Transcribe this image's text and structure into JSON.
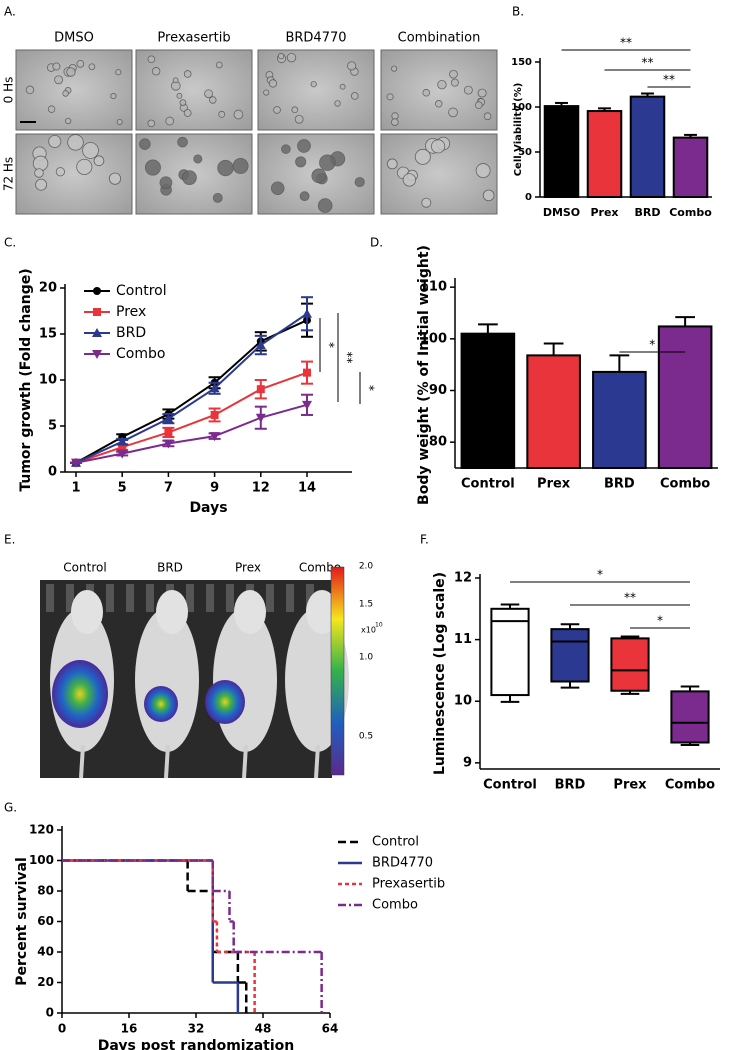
{
  "image_panels": [
    {
      "label": "A.",
      "columns": [
        "DMSO",
        "Prexasertib",
        "BRD4770",
        "Combination"
      ],
      "rows": [
        "0 Hs",
        "72 Hs"
      ]
    },
    {
      "label": "E.",
      "columns": [
        "Control",
        "BRD",
        "Prex",
        "Combo"
      ],
      "colorbar_ticks": [
        "2.0",
        "1.5",
        "1.0",
        "0.5"
      ],
      "colorbar_unit": "x10",
      "colorbar_exponent": "10"
    }
  ],
  "chart_data": [
    {
      "panel_label": "B.",
      "type": "bar",
      "y_label": "Cell Viability (%)",
      "categories": [
        "DMSO",
        "Prex",
        "BRD",
        "Combo"
      ],
      "values": [
        101,
        95.5,
        111.5,
        66
      ],
      "errors": [
        3.5,
        3,
        3.5,
        3
      ],
      "colors": [
        "#000000",
        "#e8343a",
        "#2b3990",
        "#7b2a8e"
      ],
      "ylim": [
        0,
        150
      ],
      "yticks": [
        0,
        50,
        100,
        150
      ],
      "annotations": [
        "**",
        "**",
        "**"
      ]
    },
    {
      "panel_label": "C.",
      "type": "line",
      "x_label": "Days",
      "y_label": "Tumor growth (Fold change)",
      "categories": [
        "1",
        "5",
        "7",
        "9",
        "12",
        "14"
      ],
      "series": [
        {
          "name": "Control",
          "color": "#000000",
          "marker": "circle",
          "values": [
            1,
            3.8,
            6.3,
            9.7,
            14.2,
            16.5
          ],
          "errors": [
            0,
            0.3,
            0.5,
            0.6,
            1,
            1.8
          ]
        },
        {
          "name": "Prex",
          "color": "#e8343a",
          "marker": "square",
          "values": [
            1,
            2.7,
            4.3,
            6.2,
            9,
            10.8
          ],
          "errors": [
            0,
            0.3,
            0.5,
            0.7,
            1,
            1.2
          ]
        },
        {
          "name": "BRD",
          "color": "#2b3990",
          "marker": "triangle",
          "values": [
            1,
            3.3,
            5.8,
            9.1,
            13.8,
            17.2
          ],
          "errors": [
            0,
            0.3,
            0.5,
            0.6,
            1,
            1.8
          ]
        },
        {
          "name": "Combo",
          "color": "#7b2a8e",
          "marker": "triangle-down",
          "values": [
            1,
            2,
            3.1,
            3.9,
            5.9,
            7.3
          ],
          "errors": [
            0,
            0.2,
            0.3,
            0.3,
            1.2,
            1.1
          ]
        }
      ],
      "ylim": [
        0,
        20
      ],
      "yticks": [
        0,
        5,
        10,
        15,
        20
      ],
      "annotations": [
        "*",
        "**",
        "*"
      ]
    },
    {
      "panel_label": "D.",
      "type": "bar",
      "y_label": "Body weight (% of Initial weight)",
      "categories": [
        "Control",
        "Prex",
        "BRD",
        "Combo"
      ],
      "values": [
        101,
        96.8,
        93.6,
        102.4
      ],
      "errors": [
        1.8,
        2.3,
        3.2,
        1.8
      ],
      "colors": [
        "#000000",
        "#e8343a",
        "#2b3990",
        "#7b2a8e"
      ],
      "ylim": [
        75,
        111
      ],
      "yticks": [
        80,
        90,
        100,
        110
      ],
      "annotations": [
        "*"
      ]
    },
    {
      "panel_label": "F.",
      "type": "box",
      "y_label": "Luminescence (Log scale)",
      "categories": [
        "Control",
        "BRD",
        "Prex",
        "Combo"
      ],
      "boxes": [
        {
          "min": 9.99,
          "q1": 10.1,
          "median": 11.3,
          "q3": 11.5,
          "max": 11.57
        },
        {
          "min": 10.22,
          "q1": 10.32,
          "median": 10.97,
          "q3": 11.17,
          "max": 11.25
        },
        {
          "min": 10.12,
          "q1": 10.17,
          "median": 10.5,
          "q3": 11.02,
          "max": 11.05
        },
        {
          "min": 9.29,
          "q1": 9.33,
          "median": 9.65,
          "q3": 10.16,
          "max": 10.24
        }
      ],
      "colors": [
        "#ffffff",
        "#2b3990",
        "#e8343a",
        "#7b2a8e"
      ],
      "ylim": [
        8.9,
        12
      ],
      "yticks": [
        9,
        10,
        11,
        12
      ],
      "annotations": [
        "*",
        "**",
        "*"
      ]
    },
    {
      "panel_label": "G.",
      "type": "step",
      "x_label": "Days post randomization",
      "y_label": "Percent survival",
      "series": [
        {
          "name": "Control",
          "color": "#000000",
          "dash": "8,4",
          "x": [
            0,
            30,
            36,
            42,
            44
          ],
          "values": [
            100,
            80,
            40,
            20,
            0
          ]
        },
        {
          "name": "BRD4770",
          "color": "#2b3990",
          "dash": "none",
          "x": [
            0,
            36,
            42
          ],
          "values": [
            100,
            20,
            0
          ]
        },
        {
          "name": "Prexasertib",
          "color": "#e8343a",
          "dash": "4,3",
          "x": [
            0,
            36,
            37,
            46
          ],
          "values": [
            100,
            60,
            40,
            0
          ]
        },
        {
          "name": "Combo",
          "color": "#7b2a8e",
          "dash": "8,3,2,3",
          "x": [
            0,
            36,
            40,
            41,
            62
          ],
          "values": [
            100,
            80,
            60,
            40,
            0
          ]
        }
      ],
      "xlim": [
        0,
        64
      ],
      "xticks": [
        0,
        16,
        32,
        48,
        64
      ],
      "ylim": [
        0,
        120
      ],
      "yticks": [
        0,
        20,
        40,
        60,
        80,
        100,
        120
      ]
    }
  ]
}
